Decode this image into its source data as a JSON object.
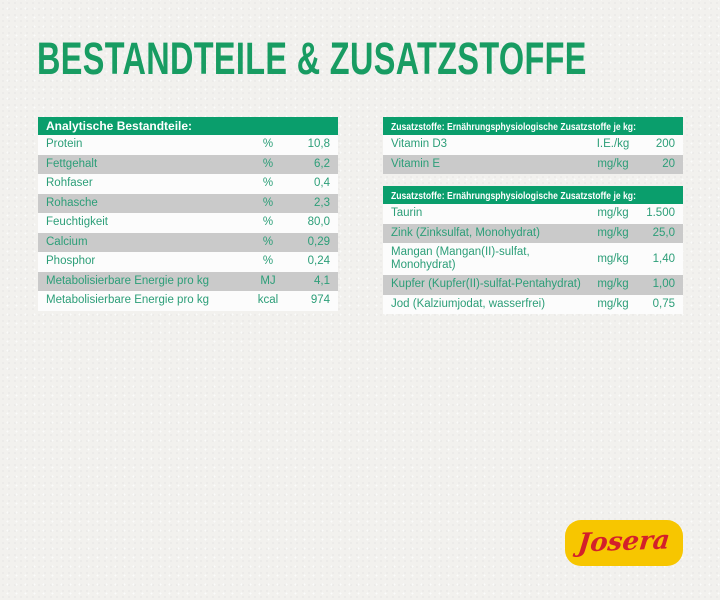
{
  "heading": "BESTANDTEILE & ZUSATZSTOFFE",
  "colors": {
    "page_bg": "#f2f1ee",
    "heading_green": "#189c62",
    "header_green": "#0a9e6c",
    "row_text_green": "#2c9e78",
    "row_white": "#fcfcfc",
    "row_alt_gray": "#cacaca",
    "logo_yellow": "#f7c600",
    "logo_red": "#d3202a"
  },
  "tables": [
    {
      "id": "analytical-components",
      "header": "Analytische Bestandteile:",
      "rows": [
        {
          "label": "Protein",
          "unit": "%",
          "value": "10,8"
        },
        {
          "label": "Fettgehalt",
          "unit": "%",
          "value": "6,2"
        },
        {
          "label": "Rohfaser",
          "unit": "%",
          "value": "0,4"
        },
        {
          "label": "Rohasche",
          "unit": "%",
          "value": "2,3"
        },
        {
          "label": "Feuchtigkeit",
          "unit": "%",
          "value": "80,0"
        },
        {
          "label": "Calcium",
          "unit": "%",
          "value": "0,29"
        },
        {
          "label": "Phosphor",
          "unit": "%",
          "value": "0,24"
        },
        {
          "label": "Metabolisierbare Energie pro kg",
          "unit": "MJ",
          "value": "4,1"
        },
        {
          "label": "Metabolisierbare Energie pro kg",
          "unit": "kcal",
          "value": "974"
        }
      ]
    },
    {
      "id": "additives-vitamins",
      "header": "Zusatzstoffe: Ernährungsphysiologische Zusatzstoffe je kg:",
      "rows": [
        {
          "label": "Vitamin D3",
          "unit": "I.E./kg",
          "value": "200"
        },
        {
          "label": "Vitamin E",
          "unit": "mg/kg",
          "value": "20"
        }
      ]
    },
    {
      "id": "additives-trace-elements",
      "header": "Zusatzstoffe: Ernährungsphysiologische Zusatzstoffe je kg:",
      "rows": [
        {
          "label": "Taurin",
          "unit": "mg/kg",
          "value": "1.500"
        },
        {
          "label": "Zink (Zinksulfat, Monohydrat)",
          "unit": "mg/kg",
          "value": "25,0"
        },
        {
          "label": "Mangan (Mangan(II)-sulfat, Monohydrat)",
          "unit": "mg/kg",
          "value": "1,40"
        },
        {
          "label": "Kupfer (Kupfer(II)-sulfat-Pentahydrat)",
          "unit": "mg/kg",
          "value": "1,00"
        },
        {
          "label": "Jod (Kalziumjodat, wasserfrei)",
          "unit": "mg/kg",
          "value": "0,75"
        }
      ]
    }
  ],
  "logo": {
    "text": "Josera"
  }
}
